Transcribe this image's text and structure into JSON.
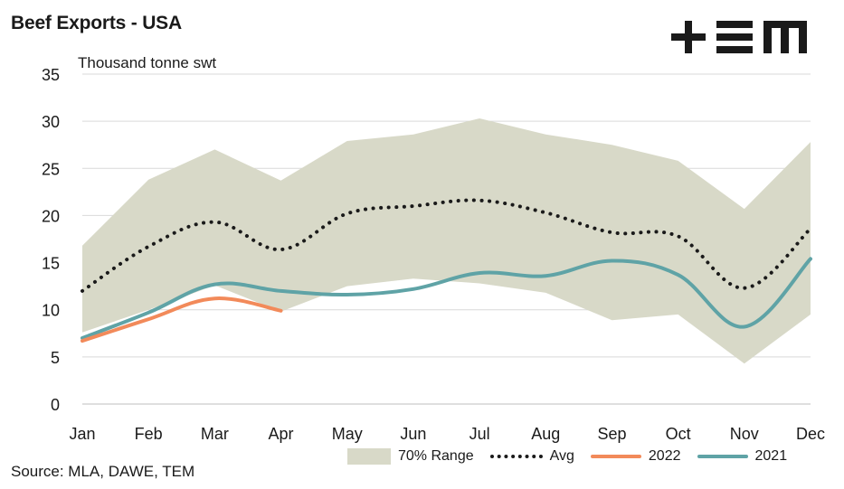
{
  "header": {
    "title": "Beef Exports - USA",
    "logo_text": "+EM"
  },
  "footer": {
    "source": "Source: MLA, DAWE, TEM"
  },
  "legend": {
    "range_label": "70% Range",
    "avg_label": "Avg",
    "y2022_label": "2022",
    "y2021_label": "2021"
  },
  "colors": {
    "range": "#d8d9c8",
    "avg": "#1a1a1a",
    "y2022": "#f28a5a",
    "y2021": "#5fa3a6",
    "grid": "#d9d9d9"
  },
  "chart_data": {
    "type": "line",
    "ylabel": "Thousand tonne swt",
    "ylim": [
      0,
      35
    ],
    "yticks": [
      0,
      5,
      10,
      15,
      20,
      25,
      30,
      35
    ],
    "grid": "horizontal",
    "legend_position": "bottom-right",
    "categories": [
      "Jan",
      "Feb",
      "Mar",
      "Apr",
      "May",
      "Jun",
      "Jul",
      "Aug",
      "Sep",
      "Oct",
      "Nov",
      "Dec"
    ],
    "range": {
      "name": "70% Range",
      "upper": [
        16.8,
        23.8,
        27.0,
        23.7,
        27.9,
        28.6,
        30.3,
        28.6,
        27.5,
        25.8,
        20.7,
        27.8
      ],
      "lower": [
        7.6,
        10.0,
        12.6,
        9.8,
        12.5,
        13.3,
        12.8,
        11.8,
        8.9,
        9.5,
        4.3,
        9.5
      ]
    },
    "series": [
      {
        "name": "Avg",
        "style": "dotted",
        "values": [
          12.0,
          16.7,
          19.3,
          16.4,
          20.2,
          21.0,
          21.6,
          20.3,
          18.2,
          17.8,
          12.3,
          18.6
        ]
      },
      {
        "name": "2022",
        "style": "solid",
        "values": [
          6.7,
          9.0,
          11.2,
          9.9,
          null,
          null,
          null,
          null,
          null,
          null,
          null,
          null
        ]
      },
      {
        "name": "2021",
        "style": "solid",
        "values": [
          7.0,
          9.7,
          12.7,
          12.0,
          11.6,
          12.2,
          13.9,
          13.6,
          15.2,
          13.7,
          8.2,
          15.4
        ]
      }
    ]
  }
}
